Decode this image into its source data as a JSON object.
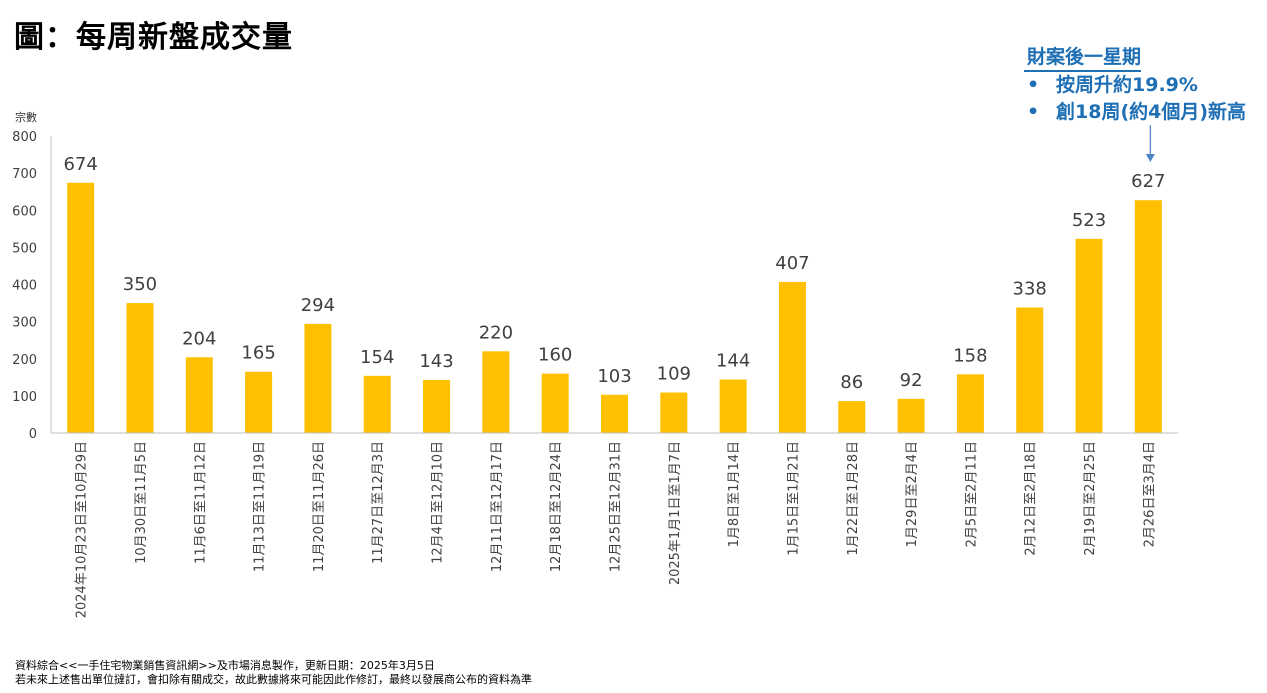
{
  "title": "圖：每周新盤成交量",
  "annotation": {
    "heading": "財案後一星期",
    "bullets": [
      "按周升約19.9%",
      "創18周(約4個月)新高"
    ],
    "bullet_symbol": "•",
    "color": "#1f6fb5"
  },
  "footnote": {
    "line1": "資料綜合<<一手住宅物業銷售資訊網>>及市場消息製作，更新日期：2025年3月5日",
    "line2": "若未來上述售出單位撻訂，會扣除有關成交，故此數據將來可能因此作修訂，最終以發展商公布的資料為準"
  },
  "chart_data": {
    "type": "bar",
    "ylabel": "宗數",
    "ylim": [
      0,
      800
    ],
    "yticks": [
      0,
      100,
      200,
      300,
      400,
      500,
      600,
      700,
      800
    ],
    "bar_color": "#ffc000",
    "categories": [
      "2024年10月23日至10月29日",
      "10月30日至11月5日",
      "11月6日至11月12日",
      "11月13日至11月19日",
      "11月20日至11月26日",
      "11月27日至12月3日",
      "12月4日至12月10日",
      "12月11日至12月17日",
      "12月18日至12月24日",
      "12月25日至12月31日",
      "2025年1月1日至1月7日",
      "1月8日至1月14日",
      "1月15日至1月21日",
      "1月22日至1月28日",
      "1月29日至2月4日",
      "2月5日至2月11日",
      "2月12日至2月18日",
      "2月19日至2月25日",
      "2月26日至3月4日"
    ],
    "values": [
      674,
      350,
      204,
      165,
      294,
      154,
      143,
      220,
      160,
      103,
      109,
      144,
      407,
      86,
      92,
      158,
      338,
      523,
      627
    ],
    "data_labels": true,
    "grid": false
  }
}
